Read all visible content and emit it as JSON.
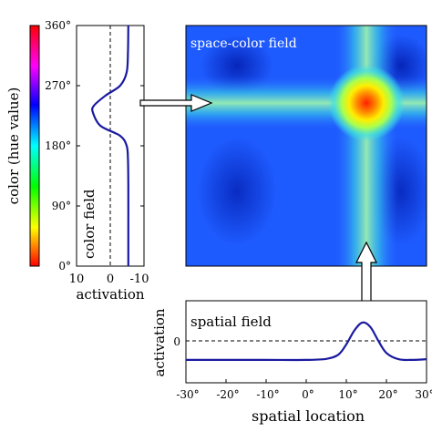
{
  "color_field": {
    "axis_label": "color (hue value)",
    "panel_label": "color field",
    "x_axis_label": "activation",
    "y_ticks": [
      "0°",
      "90°",
      "180°",
      "270°",
      "360°"
    ],
    "x_ticks": [
      "10",
      "0",
      "-10"
    ]
  },
  "space_color_field": {
    "label": "space-color field"
  },
  "spatial_field": {
    "panel_label": "spatial field",
    "y_axis_label": "activation",
    "x_axis_label": "spatial location",
    "y_ticks": [
      "0"
    ],
    "x_ticks": [
      "-30°",
      "-20°",
      "-10°",
      "0°",
      "10°",
      "20°",
      "30°"
    ]
  },
  "chart_data": [
    {
      "type": "line",
      "panel": "color field",
      "xlabel": "activation",
      "ylabel": "color (hue value)",
      "xlim": [
        10,
        -10
      ],
      "ylim": [
        0,
        360
      ],
      "threshold": 0,
      "series": [
        {
          "color": "#1a1aa0",
          "points": [
            [
              -5.5,
              0
            ],
            [
              -5.5,
              60
            ],
            [
              -5.5,
              120
            ],
            [
              -5.4,
              160
            ],
            [
              -5.0,
              180
            ],
            [
              -3.0,
              195
            ],
            [
              3.0,
              210
            ],
            [
              5.3,
              230
            ],
            [
              5.0,
              240
            ],
            [
              1.5,
              255
            ],
            [
              -3.0,
              270
            ],
            [
              -5.0,
              290
            ],
            [
              -5.4,
              320
            ],
            [
              -5.5,
              360
            ]
          ]
        }
      ]
    },
    {
      "type": "line",
      "panel": "spatial field",
      "xlabel": "spatial location",
      "ylabel": "activation",
      "xlim": [
        -30,
        30
      ],
      "threshold": 0,
      "series": [
        {
          "color": "#1a1aa0",
          "points": [
            [
              -30,
              -5.5
            ],
            [
              -20,
              -5.5
            ],
            [
              -10,
              -5.5
            ],
            [
              0,
              -5.5
            ],
            [
              5,
              -5.2
            ],
            [
              8,
              -4
            ],
            [
              10,
              -1
            ],
            [
              12,
              3
            ],
            [
              14,
              5.3
            ],
            [
              16,
              4
            ],
            [
              18,
              0
            ],
            [
              20,
              -3.5
            ],
            [
              23,
              -5.3
            ],
            [
              26,
              -5.5
            ],
            [
              30,
              -5.3
            ]
          ]
        }
      ]
    },
    {
      "type": "heatmap",
      "panel": "space-color field",
      "colormap": "jet",
      "peak": {
        "x": 15,
        "y": 235
      }
    }
  ]
}
